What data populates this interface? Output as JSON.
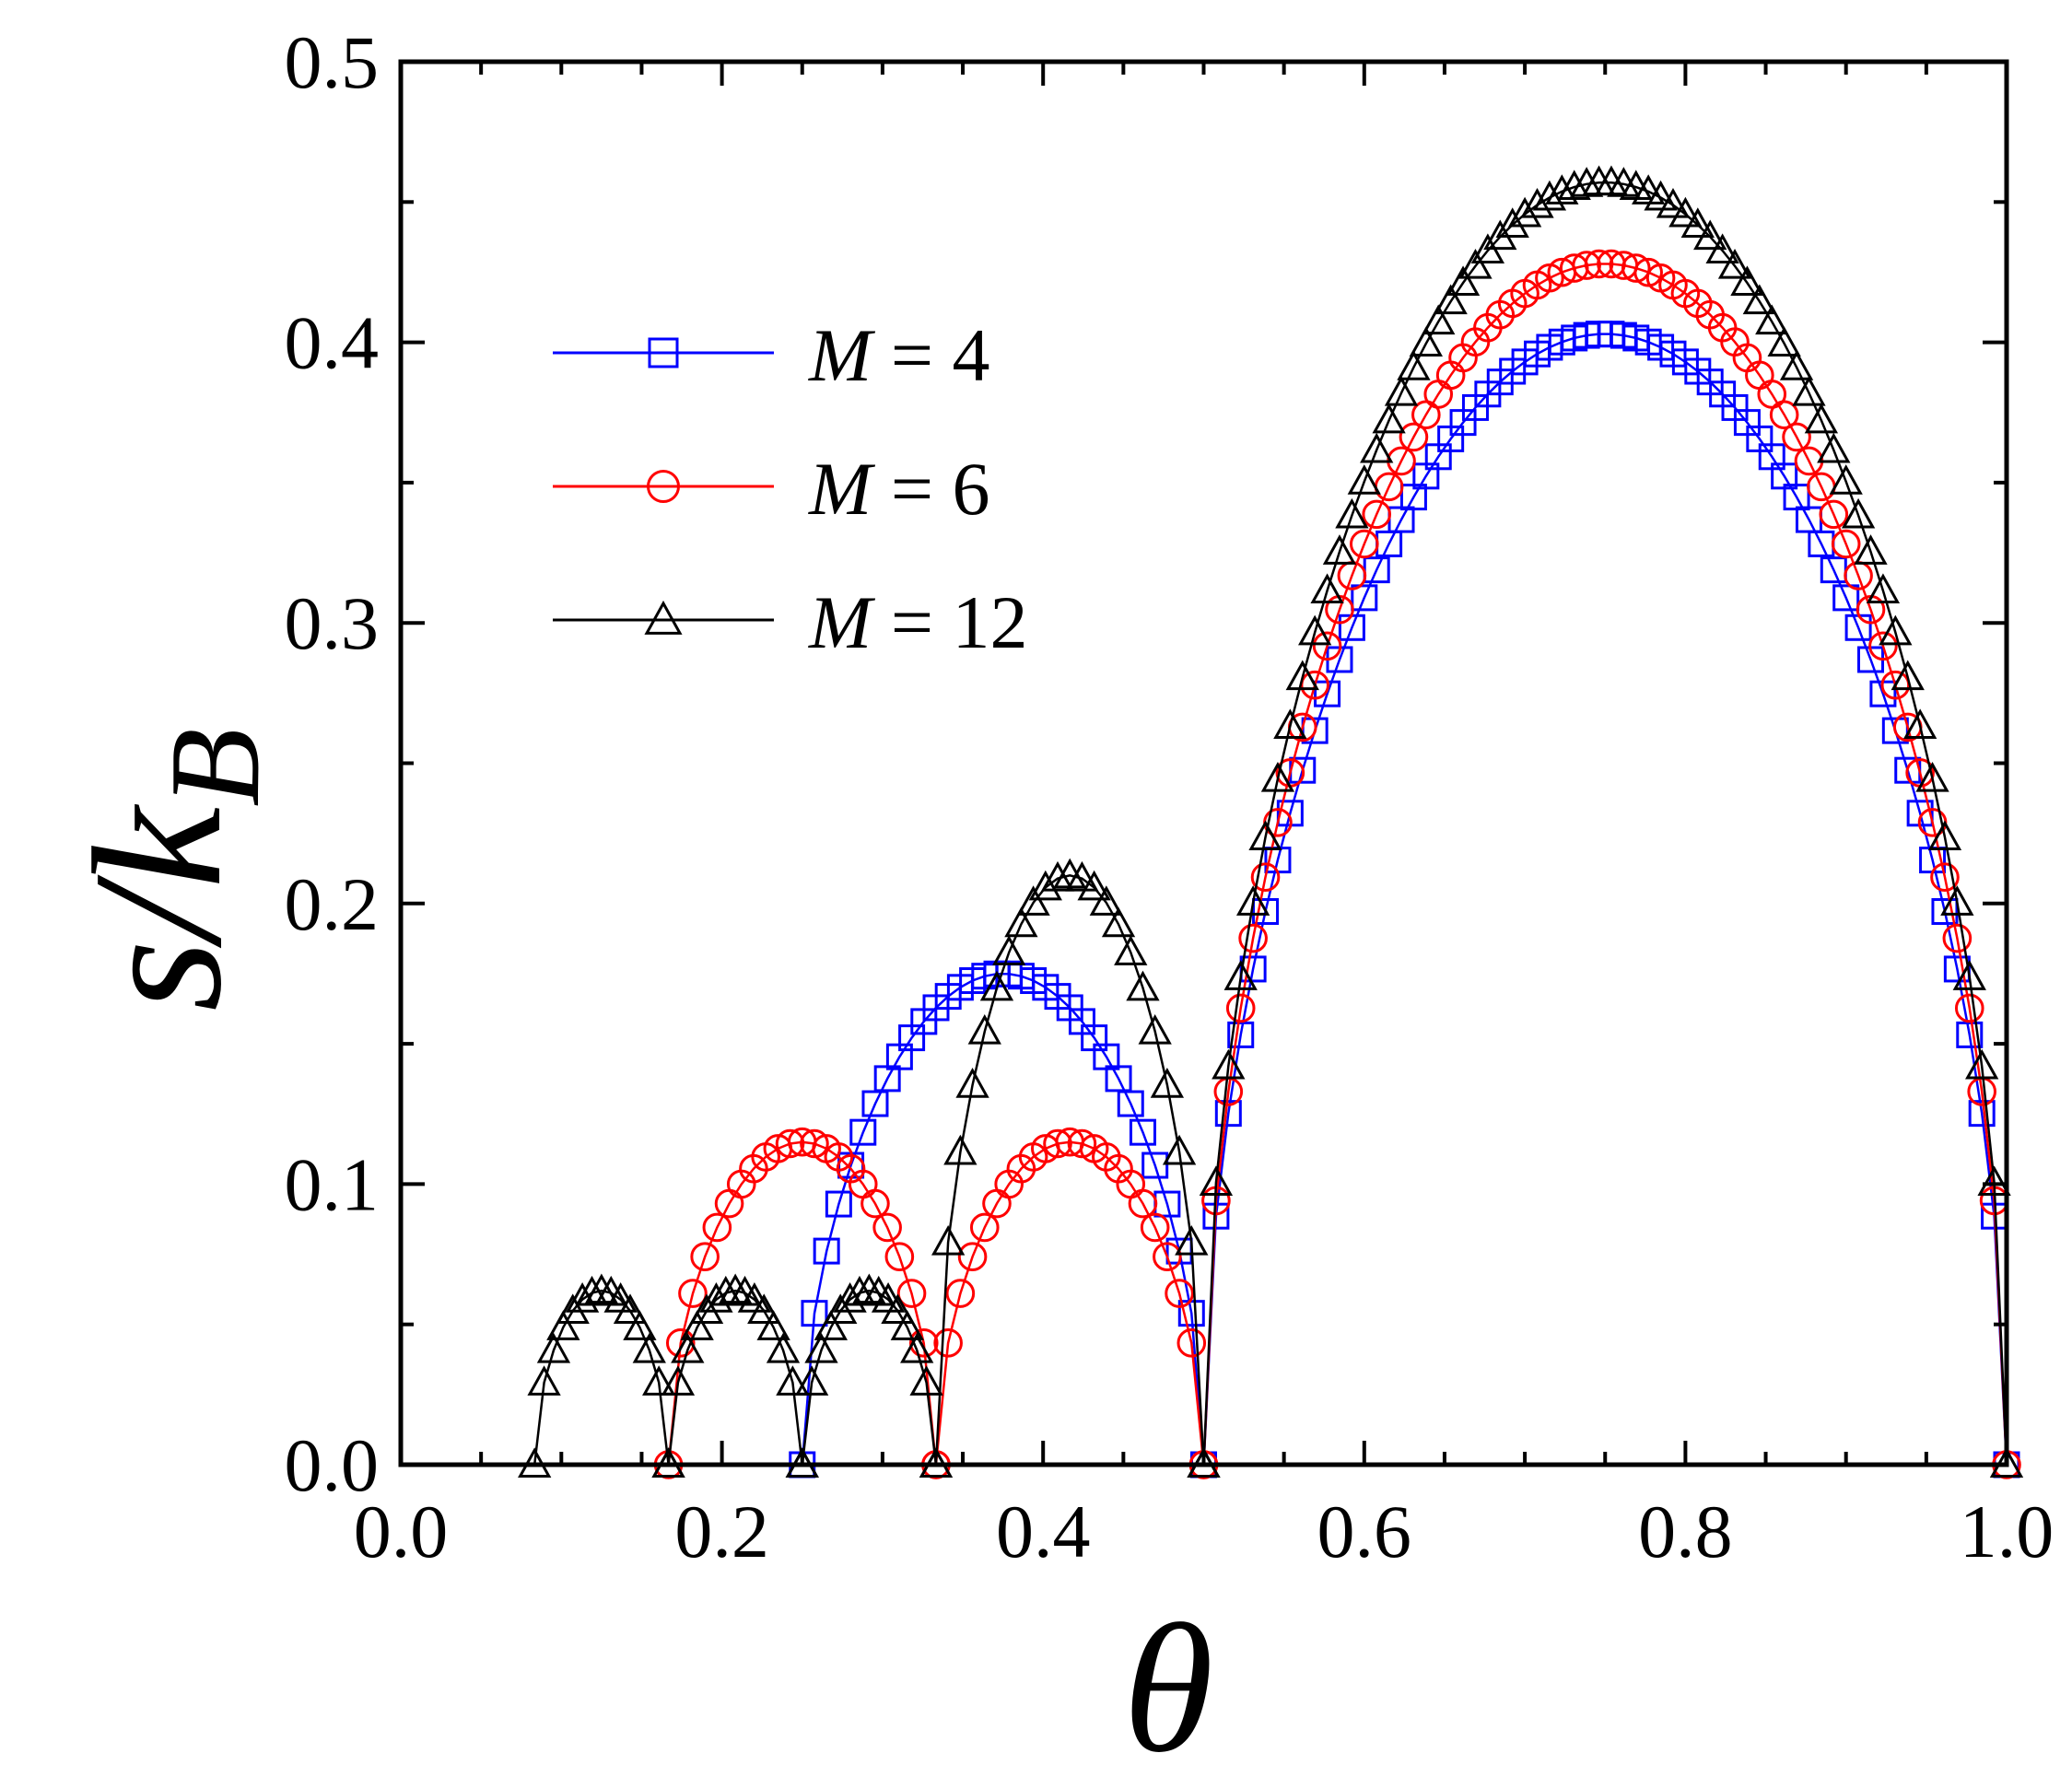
{
  "chart_data": {
    "type": "line",
    "title": "",
    "xlabel": "θ",
    "ylabel": "s/k_B",
    "ylabel_parts": {
      "main": "s/k",
      "sub": "B"
    },
    "xlim": [
      0.0,
      1.0
    ],
    "ylim": [
      0.0,
      0.5
    ],
    "xticks": [
      0.0,
      0.2,
      0.4,
      0.6,
      0.8,
      1.0
    ],
    "xtick_labels": [
      "0.0",
      "0.2",
      "0.4",
      "0.6",
      "0.8",
      "1.0"
    ],
    "yticks": [
      0.0,
      0.1,
      0.2,
      0.3,
      0.4,
      0.5
    ],
    "ytick_labels": [
      "0.0",
      "0.1",
      "0.2",
      "0.3",
      "0.4",
      "0.5"
    ],
    "grid": false,
    "legend_position": "upper-left",
    "series": [
      {
        "name": "M = 4",
        "label_var": "M",
        "label_rest": " = 4",
        "M": 4,
        "color": "#0000ff",
        "marker": "square",
        "lobes": [
          [
            0.25,
            0.5,
            0.175
          ],
          [
            0.5,
            1.0,
            0.403
          ]
        ]
      },
      {
        "name": "M = 6",
        "label_var": "M",
        "label_rest": " = 6",
        "M": 6,
        "color": "#ff0000",
        "marker": "circle",
        "lobes": [
          [
            0.1667,
            0.3333,
            0.115
          ],
          [
            0.3333,
            0.5,
            0.115
          ],
          [
            0.5,
            1.0,
            0.428
          ]
        ]
      },
      {
        "name": "M = 12",
        "label_var": "M",
        "label_rest": " = 12",
        "M": 12,
        "color": "#000000",
        "marker": "triangle",
        "lobes": [
          [
            0.0833,
            0.1667,
            0.062
          ],
          [
            0.1667,
            0.25,
            0.062
          ],
          [
            0.25,
            0.3333,
            0.062
          ],
          [
            0.3333,
            0.5,
            0.21
          ],
          [
            0.5,
            1.0,
            0.457
          ]
        ]
      }
    ]
  }
}
